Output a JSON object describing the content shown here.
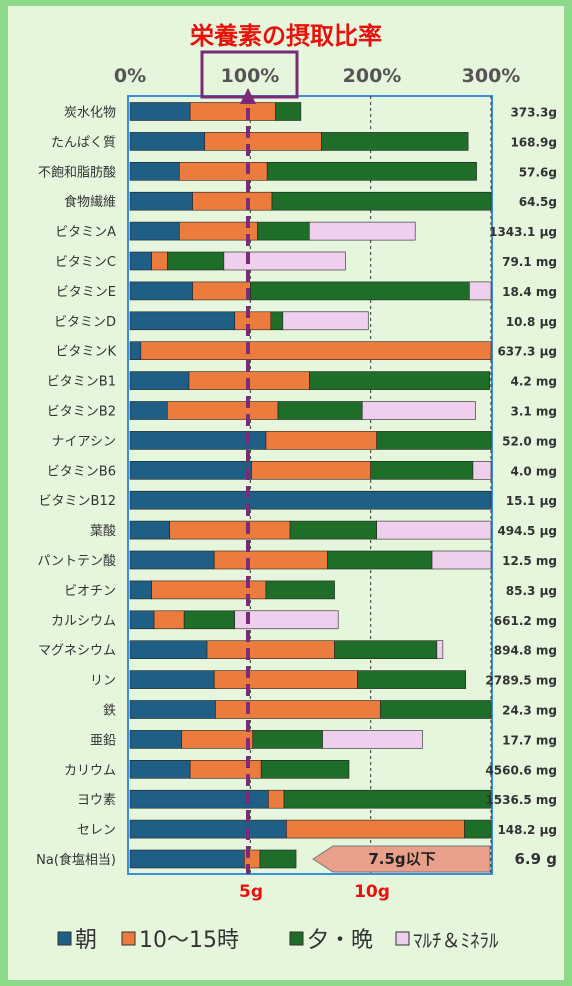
{
  "chart_data": {
    "type": "bar",
    "title": "栄養素の摂取比率",
    "x_ticks": [
      "0%",
      "100%",
      "200%",
      "300%"
    ],
    "xlim": [
      0,
      300
    ],
    "legend_position": "bottom",
    "legend_label_asa": "朝",
    "legend_label_midday": "10～15時",
    "legend_label_evening": "夕・晩",
    "legend_label_multi": "ﾏﾙﾁ＆ﾐﾈﾗﾙ",
    "sodium_markers": [
      "5g",
      "10g"
    ],
    "sodium_limit_note": "7.5g以下",
    "series": [
      {
        "name": "朝",
        "color": "#1f5f85"
      },
      {
        "name": "10～15時",
        "color": "#ec7b3e"
      },
      {
        "name": "夕・晩",
        "color": "#1e6e2a"
      },
      {
        "name": "ﾏﾙﾁ＆ﾐﾈﾗﾙ",
        "color": "#efcfee"
      }
    ],
    "rows": [
      {
        "label": "炭水化物",
        "amount": "373.3g",
        "values": [
          50,
          71,
          21,
          0
        ]
      },
      {
        "label": "たんぱく質",
        "amount": "168.9g",
        "values": [
          62,
          97,
          122,
          0
        ]
      },
      {
        "label": "不飽和脂肪酸",
        "amount": "57.6g",
        "values": [
          41,
          73,
          174,
          0
        ]
      },
      {
        "label": "食物繊維",
        "amount": "64.5g",
        "values": [
          52,
          66,
          182,
          0
        ]
      },
      {
        "label": "ビタミンA",
        "amount": "1343.1 µg",
        "values": [
          41,
          65,
          43,
          88
        ]
      },
      {
        "label": "ビタミンC",
        "amount": "79.1 mg",
        "values": [
          18,
          13,
          47,
          101
        ]
      },
      {
        "label": "ビタミンE",
        "amount": "18.4 mg",
        "values": [
          52,
          48,
          182,
          18
        ]
      },
      {
        "label": "ビタミンD",
        "amount": "10.8 µg",
        "values": [
          87,
          30,
          10,
          71
        ]
      },
      {
        "label": "ビタミンK",
        "amount": "637.3 µg",
        "values": [
          9,
          291,
          0,
          0
        ]
      },
      {
        "label": "ビタミンB1",
        "amount": "4.2 mg",
        "values": [
          49,
          100,
          150,
          0
        ]
      },
      {
        "label": "ビタミンB2",
        "amount": "3.1 mg",
        "values": [
          31,
          92,
          70,
          94
        ]
      },
      {
        "label": "ナイアシン",
        "amount": "52.0 mg",
        "values": [
          113,
          92,
          95,
          0
        ]
      },
      {
        "label": "ビタミンB6",
        "amount": "4.0 mg",
        "values": [
          101,
          99,
          85,
          15
        ]
      },
      {
        "label": "ビタミンB12",
        "amount": "15.1 µg",
        "values": [
          300,
          0,
          0,
          0
        ]
      },
      {
        "label": "葉酸",
        "amount": "494.5 µg",
        "values": [
          33,
          100,
          72,
          95
        ]
      },
      {
        "label": "パントテン酸",
        "amount": "12.5 mg",
        "values": [
          70,
          94,
          87,
          49
        ]
      },
      {
        "label": "ビオチン",
        "amount": "85.3 µg",
        "values": [
          18,
          95,
          57,
          0
        ]
      },
      {
        "label": "カルシウム",
        "amount": "661.2 mg",
        "values": [
          20,
          25,
          42,
          86
        ]
      },
      {
        "label": "マグネシウム",
        "amount": "894.8 mg",
        "values": [
          64,
          106,
          85,
          5
        ]
      },
      {
        "label": "リン",
        "amount": "2789.5 mg",
        "values": [
          70,
          119,
          90,
          0
        ]
      },
      {
        "label": "鉄",
        "amount": "24.3 mg",
        "values": [
          71,
          137,
          92,
          0
        ]
      },
      {
        "label": "亜鉛",
        "amount": "17.7 mg",
        "values": [
          43,
          59,
          58,
          83
        ]
      },
      {
        "label": "カリウム",
        "amount": "4560.6 mg",
        "values": [
          50,
          59,
          73,
          0
        ]
      },
      {
        "label": "ヨウ素",
        "amount": "1536.5 mg",
        "values": [
          115,
          13,
          172,
          0
        ]
      },
      {
        "label": "セレン",
        "amount": "148.2 µg",
        "values": [
          130,
          148,
          22,
          0
        ]
      },
      {
        "label": "Na(食塩相当)",
        "amount": "6.9 g",
        "values": [
          95,
          13,
          30,
          0
        ]
      }
    ]
  }
}
